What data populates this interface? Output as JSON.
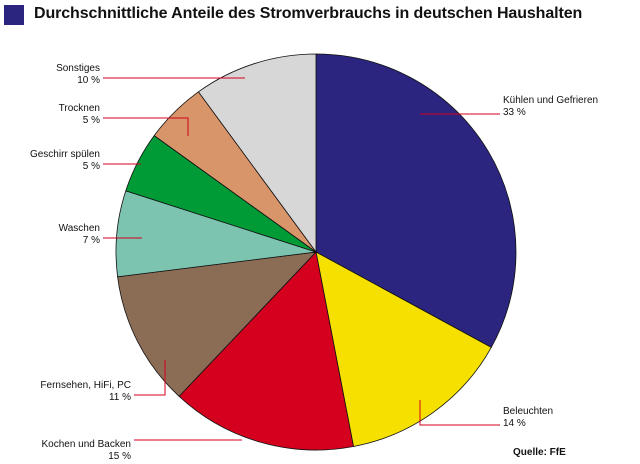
{
  "title": "Durchschnittliche Anteile des Stromverbrauchs in deutschen Haushalten",
  "source": "Quelle: FfE",
  "colors": {
    "title_square": "#2b2580"
  },
  "chart_data": {
    "type": "pie",
    "title": "Durchschnittliche Anteile des Stromverbrauchs in deutschen Haushalten",
    "unit": "%",
    "slices": [
      {
        "label": "Kühlen und Gefrieren",
        "value": 33,
        "value_text": "33 %",
        "color": "#2b2580"
      },
      {
        "label": "Beleuchten",
        "value": 14,
        "value_text": "14 %",
        "color": "#f5e000"
      },
      {
        "label": "Kochen und Backen",
        "value": 15,
        "value_text": "15 %",
        "color": "#d4001e"
      },
      {
        "label": "Fernsehen,  HiFi, PC",
        "value": 11,
        "value_text": "11 %",
        "color": "#8b6c55"
      },
      {
        "label": "Waschen",
        "value": 7,
        "value_text": "7 %",
        "color": "#7cc4b0"
      },
      {
        "label": "Geschirr spülen",
        "value": 5,
        "value_text": "5 %",
        "color": "#009a36"
      },
      {
        "label": "Trocknen",
        "value": 5,
        "value_text": "5 %",
        "color": "#d9956a"
      },
      {
        "label": "Sonstiges",
        "value": 10,
        "value_text": "10 %",
        "color": "#d7d7d7"
      }
    ]
  }
}
